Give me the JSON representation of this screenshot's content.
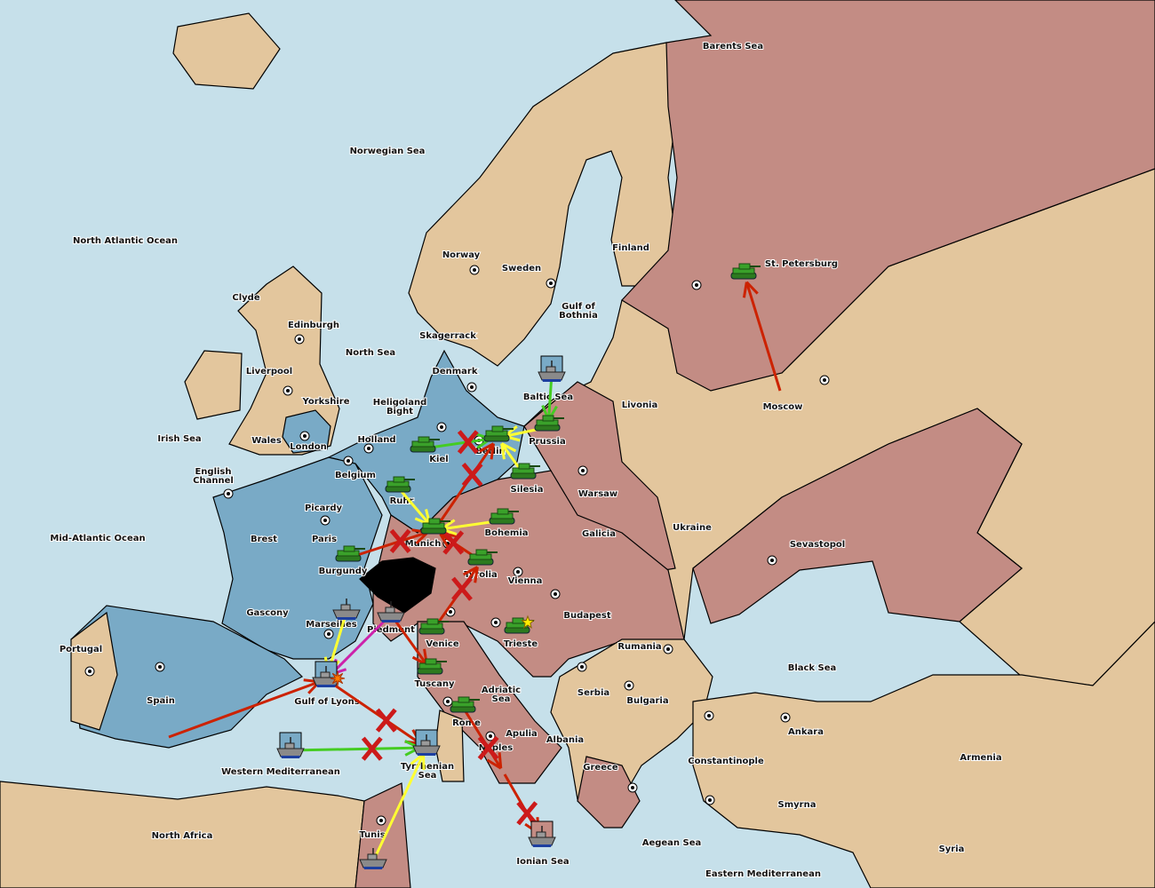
{
  "colors": {
    "sea": "#c6e0ea",
    "neutral_land": "#e3c69d",
    "power_blue": "#79aac6",
    "power_red": "#c38c84",
    "switzerland": "#000000",
    "army": "#3aa12a",
    "fleet": "#8a8a8a",
    "order_red": "#cc2200",
    "order_green": "#44cc22",
    "order_yellow": "#ffff33",
    "order_magenta": "#cc22aa"
  },
  "labels": [
    "North Atlantic Ocean",
    "Norwegian Sea",
    "Barents Sea",
    "Clyde",
    "Edinburgh",
    "Liverpool",
    "Yorkshire",
    "North Sea",
    "Skagerrack",
    "Norway",
    "Sweden",
    "Finland",
    "Gulf of Bothnia",
    "St. Petersburg",
    "Denmark",
    "Heligoland Bight",
    "Baltic Sea",
    "Livonia",
    "Moscow",
    "Irish Sea",
    "Wales",
    "London",
    "Holland",
    "Kiel",
    "Berlin",
    "Prussia",
    "English Channel",
    "Belgium",
    "Silesia",
    "Warsaw",
    "Ruhr",
    "Picardy",
    "Mid-Atlantic Ocean",
    "Brest",
    "Paris",
    "Munich",
    "Bohemia",
    "Galicia",
    "Ukraine",
    "Sevastopol",
    "Burgundy",
    "Tyrolia",
    "Vienna",
    "Gascony",
    "Budapest",
    "Marseilles",
    "Piedmont",
    "Portugal",
    "Venice",
    "Trieste",
    "Rumania",
    "Black Sea",
    "Tuscany",
    "Adriatic Sea",
    "Serbia",
    "Spain",
    "Gulf of Lyons",
    "Bulgaria",
    "Rome",
    "Apulia",
    "Ankara",
    "Albania",
    "Naples",
    "Armenia",
    "Constantinople",
    "Western Mediterranean",
    "Tyrrhenian Sea",
    "Greece",
    "Smyrna",
    "North Africa",
    "Tunis",
    "Aegean Sea",
    "Syria",
    "Ionian Sea",
    "Eastern Mediterranean"
  ],
  "supply_centers": [
    "Edinburgh",
    "Liverpool",
    "London",
    "Norway",
    "Sweden",
    "St. Petersburg",
    "Moscow",
    "Denmark",
    "Kiel",
    "Berlin",
    "Holland",
    "Belgium",
    "Warsaw",
    "Paris",
    "Brest",
    "Munich",
    "Vienna",
    "Budapest",
    "Sevastopol",
    "Marseilles",
    "Venice",
    "Trieste",
    "Rumania",
    "Spain",
    "Portugal",
    "Serbia",
    "Bulgaria",
    "Rome",
    "Naples",
    "Tunis",
    "Greece",
    "Constantinople",
    "Ankara",
    "Smyrna"
  ],
  "units": [
    {
      "type": "army",
      "province": "St. Petersburg",
      "dislodged": false
    },
    {
      "type": "army",
      "province": "Kiel",
      "dislodged": false
    },
    {
      "type": "army",
      "province": "Berlin",
      "dislodged": false
    },
    {
      "type": "army",
      "province": "Prussia",
      "dislodged": false
    },
    {
      "type": "army",
      "province": "Silesia",
      "dislodged": false
    },
    {
      "type": "army",
      "province": "Ruhr",
      "dislodged": false
    },
    {
      "type": "army",
      "province": "Munich",
      "dislodged": false
    },
    {
      "type": "army",
      "province": "Bohemia",
      "dislodged": false
    },
    {
      "type": "army",
      "province": "Burgundy",
      "dislodged": false
    },
    {
      "type": "army",
      "province": "Tyrolia",
      "dislodged": false
    },
    {
      "type": "army",
      "province": "Venice",
      "dislodged": false
    },
    {
      "type": "army",
      "province": "Trieste",
      "dislodged": false
    },
    {
      "type": "army",
      "province": "Tuscany",
      "dislodged": false
    },
    {
      "type": "army",
      "province": "Rome",
      "dislodged": false
    },
    {
      "type": "fleet",
      "province": "Baltic Sea",
      "dislodged": true
    },
    {
      "type": "fleet",
      "province": "Marseilles",
      "dislodged": false
    },
    {
      "type": "fleet",
      "province": "Piedmont",
      "dislodged": false
    },
    {
      "type": "fleet",
      "province": "Gulf of Lyons",
      "dislodged": true
    },
    {
      "type": "fleet",
      "province": "Western Mediterranean",
      "dislodged": true
    },
    {
      "type": "fleet",
      "province": "Tyrrhenian Sea",
      "dislodged": true
    },
    {
      "type": "fleet",
      "province": "Tunis",
      "dislodged": false
    },
    {
      "type": "fleet",
      "province": "Ionian Sea",
      "dislodged": true
    }
  ],
  "orders": [
    {
      "from": "Moscow",
      "to": "St. Petersburg",
      "color": "red",
      "failed": false
    },
    {
      "from": "Spain",
      "to": "Gulf of Lyons",
      "color": "red",
      "failed": false
    },
    {
      "from": "Gulf of Lyons",
      "to": "Tyrrhenian Sea",
      "color": "red",
      "failed": true
    },
    {
      "from": "Piedmont",
      "to": "Tuscany",
      "color": "red",
      "failed": false
    },
    {
      "from": "Piedmont",
      "to": "Gulf of Lyons",
      "color": "magenta",
      "failed": false
    },
    {
      "from": "Marseilles",
      "to": "Gulf of Lyons",
      "color": "yellow",
      "failed": false
    },
    {
      "from": "Western Mediterranean",
      "to": "Tyrrhenian Sea",
      "color": "green",
      "failed": true
    },
    {
      "from": "Tunis",
      "to": "Tyrrhenian Sea",
      "color": "yellow",
      "failed": false
    },
    {
      "from": "Rome",
      "to": "Naples",
      "color": "red",
      "failed": true
    },
    {
      "from": "Naples",
      "to": "Ionian Sea",
      "color": "red",
      "failed": true
    },
    {
      "from": "Venice",
      "to": "Tyrolia",
      "color": "red",
      "failed": true
    },
    {
      "from": "Tyrolia",
      "to": "Munich",
      "color": "red",
      "failed": true
    },
    {
      "from": "Burgundy",
      "to": "Munich",
      "color": "red",
      "failed": true
    },
    {
      "from": "Ruhr",
      "to": "Munich",
      "color": "yellow",
      "failed": false
    },
    {
      "from": "Bohemia",
      "to": "Munich",
      "color": "yellow",
      "failed": false
    },
    {
      "from": "Munich",
      "to": "Berlin",
      "color": "red",
      "failed": true
    },
    {
      "from": "Silesia",
      "to": "Berlin",
      "color": "yellow",
      "failed": false
    },
    {
      "from": "Prussia",
      "to": "Berlin",
      "color": "yellow",
      "failed": false
    },
    {
      "from": "Kiel",
      "to": "Berlin",
      "color": "green",
      "failed": true
    },
    {
      "from": "Baltic Sea",
      "to": "Prussia",
      "color": "green",
      "failed": false
    }
  ],
  "markers": [
    {
      "type": "star",
      "province": "Trieste"
    },
    {
      "type": "explosion",
      "province": "Gulf of Lyons"
    }
  ]
}
